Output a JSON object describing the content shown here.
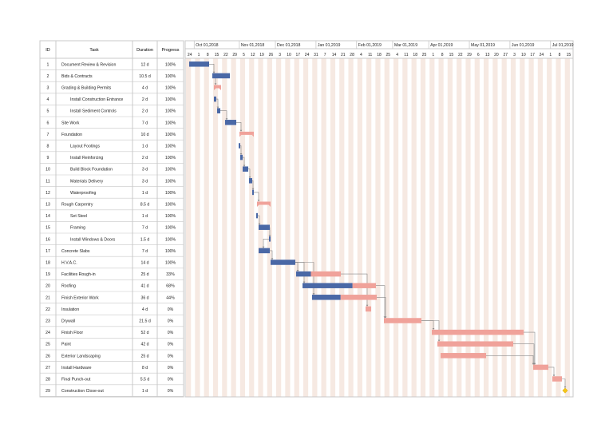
{
  "headers": {
    "id": "ID",
    "task": "Task",
    "duration": "Duration",
    "progress": "Progress"
  },
  "months": [
    "Oct 01,2018",
    "Nov 01,2018",
    "Dec 01,2018",
    "Jan 01,2019",
    "Feb 01,2019",
    "Mar 01,2019",
    "Apr 01,2019",
    "May 01,2019",
    "Jun 01,2019",
    "Jul 01,2019"
  ],
  "day_labels": [
    "24",
    "1",
    "8",
    "15",
    "22",
    "29",
    "5",
    "12",
    "19",
    "26",
    "3",
    "10",
    "17",
    "24",
    "31",
    "7",
    "14",
    "21",
    "28",
    "4",
    "11",
    "18",
    "25",
    "4",
    "11",
    "18",
    "25",
    "1",
    "8",
    "15",
    "22",
    "29",
    "6",
    "13",
    "20",
    "27",
    "3",
    "10",
    "17",
    "24",
    "1",
    "8",
    "15"
  ],
  "colors": {
    "done": "#4a68a6",
    "remaining": "#f0a29a",
    "milestone": "#f5c518",
    "grid_stripe": "#f6e9e2",
    "border": "#c8c8c8",
    "arrow": "#888888"
  },
  "tasks": [
    {
      "id": "1",
      "name": "Document Review & Revision",
      "duration": "12 d",
      "progress": "100%",
      "indent": 0
    },
    {
      "id": "2",
      "name": "Bids & Contracts",
      "duration": "10.5 d",
      "progress": "100%",
      "indent": 0
    },
    {
      "id": "3",
      "name": "Grading & Building Permits",
      "duration": "4 d",
      "progress": "100%",
      "indent": 0
    },
    {
      "id": "4",
      "name": "Install Construction Entrance",
      "duration": "2 d",
      "progress": "100%",
      "indent": 1
    },
    {
      "id": "5",
      "name": "Install Sediment Controls",
      "duration": "2 d",
      "progress": "100%",
      "indent": 1
    },
    {
      "id": "6",
      "name": "Site Work",
      "duration": "7 d",
      "progress": "100%",
      "indent": 0
    },
    {
      "id": "7",
      "name": "Foundation",
      "duration": "10 d",
      "progress": "100%",
      "indent": 0
    },
    {
      "id": "8",
      "name": "Layout Footings",
      "duration": "1 d",
      "progress": "100%",
      "indent": 1
    },
    {
      "id": "9",
      "name": "Install Reinforcing",
      "duration": "2 d",
      "progress": "100%",
      "indent": 1
    },
    {
      "id": "10",
      "name": "Build Block Foundation",
      "duration": "3 d",
      "progress": "100%",
      "indent": 1
    },
    {
      "id": "11",
      "name": "Materials Delivery",
      "duration": "3 d",
      "progress": "100%",
      "indent": 1
    },
    {
      "id": "12",
      "name": "Waterproofing",
      "duration": "1 d",
      "progress": "100%",
      "indent": 1
    },
    {
      "id": "13",
      "name": "Rough Carpentry",
      "duration": "8.5 d",
      "progress": "100%",
      "indent": 0
    },
    {
      "id": "14",
      "name": "Set Steel",
      "duration": "1 d",
      "progress": "100%",
      "indent": 1
    },
    {
      "id": "15",
      "name": "Framing",
      "duration": "7 d",
      "progress": "100%",
      "indent": 1
    },
    {
      "id": "16",
      "name": "Install Windows & Doors",
      "duration": "1.5 d",
      "progress": "100%",
      "indent": 1
    },
    {
      "id": "17",
      "name": "Concrete Slabs",
      "duration": "7 d",
      "progress": "100%",
      "indent": 0
    },
    {
      "id": "18",
      "name": "H.V.A.C.",
      "duration": "14 d",
      "progress": "100%",
      "indent": 0
    },
    {
      "id": "19",
      "name": "Facilities Rough-in",
      "duration": "25 d",
      "progress": "33%",
      "indent": 0
    },
    {
      "id": "20",
      "name": "Roofing",
      "duration": "41 d",
      "progress": "68%",
      "indent": 0
    },
    {
      "id": "21",
      "name": "Finish Exterior Work",
      "duration": "36 d",
      "progress": "44%",
      "indent": 0
    },
    {
      "id": "22",
      "name": "Insulation",
      "duration": "4 d",
      "progress": "0%",
      "indent": 0
    },
    {
      "id": "23",
      "name": "Drywall",
      "duration": "21.5 d",
      "progress": "0%",
      "indent": 0
    },
    {
      "id": "24",
      "name": "Finish Floor",
      "duration": "52 d",
      "progress": "0%",
      "indent": 0
    },
    {
      "id": "25",
      "name": "Paint",
      "duration": "42 d",
      "progress": "0%",
      "indent": 0
    },
    {
      "id": "26",
      "name": "Exterior Landscaping",
      "duration": "25 d",
      "progress": "0%",
      "indent": 0
    },
    {
      "id": "27",
      "name": "Install Hardware",
      "duration": "8 d",
      "progress": "0%",
      "indent": 0
    },
    {
      "id": "28",
      "name": "Final Punch-out",
      "duration": "5.5 d",
      "progress": "0%",
      "indent": 0
    },
    {
      "id": "29",
      "name": "Construction Close-out",
      "duration": "1 d",
      "progress": "0%",
      "indent": 0
    }
  ]
}
